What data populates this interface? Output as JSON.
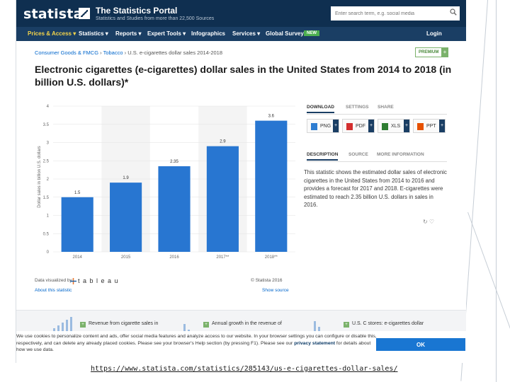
{
  "header": {
    "logo": "statista",
    "portal_title": "The Statistics Portal",
    "portal_subtitle": "Statistics and Studies from more than 22,500 Sources",
    "search_placeholder": "Enter search term, e.g. social media"
  },
  "nav": {
    "items": [
      {
        "label": "Prices & Access ▾"
      },
      {
        "label": "Statistics ▾"
      },
      {
        "label": "Reports ▾"
      },
      {
        "label": "Expert Tools ▾"
      },
      {
        "label": "Infographics"
      },
      {
        "label": "Services ▾"
      },
      {
        "label": "Global Survey"
      }
    ],
    "new_badge": "NEW",
    "login": "Login"
  },
  "breadcrumb": {
    "part1": "Consumer Goods & FMCG",
    "part2": "Tobacco",
    "current": "U.S. e-cigarettes dollar sales 2014-2018"
  },
  "premium": {
    "label": "PREMIUM",
    "plus": "+"
  },
  "headline": "Electronic cigarettes (e-cigarettes) dollar sales in the United States from 2014 to 2018 (in billion U.S. dollars)*",
  "chart_data": {
    "type": "bar",
    "title": "Electronic cigarettes (e-cigarettes) dollar sales in the United States from 2014 to 2018 (in billion U.S. dollars)*",
    "xlabel": "",
    "ylabel": "Dollar sales in billion U.S. dollars",
    "categories": [
      "2014",
      "2015",
      "2016",
      "2017**",
      "2018**"
    ],
    "values": [
      1.5,
      1.9,
      2.35,
      2.9,
      3.6
    ],
    "data_labels": [
      "1.5",
      "1.9",
      "2.35",
      "2.9",
      "3.6"
    ],
    "ylim": [
      0,
      4
    ],
    "yticks": [
      "0",
      "0.5",
      "1",
      "1.5",
      "2",
      "2.5",
      "3",
      "3.5",
      "4"
    ],
    "bar_color": "#2876d1"
  },
  "chart_footer": {
    "viz_label": "Data visualized by",
    "tableau": "t a b l e a u",
    "copyright": "© Statista 2016",
    "about": "About this statistic",
    "show_source": "Show source"
  },
  "panel": {
    "tabs_top": [
      "DOWNLOAD",
      "SETTINGS",
      "SHARE"
    ],
    "downloads": [
      {
        "label": "PNG",
        "icon": "png-file-icon",
        "color": "#2e7dd1"
      },
      {
        "label": "PDF",
        "icon": "pdf-file-icon",
        "color": "#d32f2f"
      },
      {
        "label": "XLS",
        "icon": "xls-file-icon",
        "color": "#2e7d32"
      },
      {
        "label": "PPT",
        "icon": "ppt-file-icon",
        "color": "#e65100"
      }
    ],
    "tabs_mid": [
      "DESCRIPTION",
      "SOURCE",
      "MORE INFORMATION"
    ],
    "description": "This statistic shows the estimated dollar sales of electronic cigarettes in the United States from 2014 to 2016 and provides a forecast for 2017 and 2018. E-cigarettes were estimated to reach 2.35 billion U.S. dollars in sales in 2016.",
    "icons": "↻  ♡"
  },
  "related": [
    {
      "title": "Revenue from cigarette sales in"
    },
    {
      "title": "Annual growth in the revenue of"
    },
    {
      "title": "U.S. C stores: e-cigarettes dollar"
    }
  ],
  "cookie": {
    "text1": "We use cookies to personalize content and ads, offer social media features and analyze access to our website. In your browser settings you can configure or disable this, respectively, and can delete any already placed cookies. Please see your browser's Help section (by pressing F1).",
    "text2": "Please see our",
    "link": "privacy statement",
    "text3": "for details about how we use data.",
    "ok": "OK"
  },
  "caption_url": "https://www.statista.com/statistics/285143/us-e-cigarettes-dollar-sales/"
}
